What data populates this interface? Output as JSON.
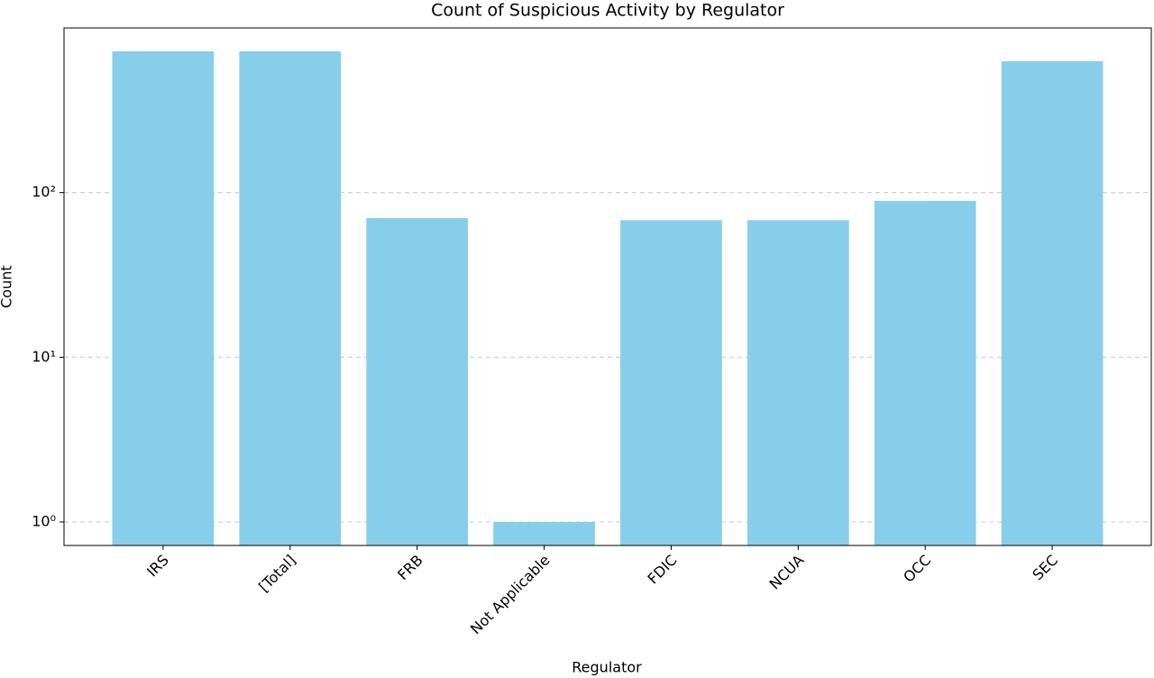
{
  "chart_data": {
    "type": "bar",
    "title": "Count of Suspicious Activity by Regulator",
    "x_label": "Regulator",
    "y_label": "Count",
    "categories": [
      "IRS",
      "[Total]",
      "FRB",
      "Not Applicable",
      "FDIC",
      "NCUA",
      "OCC",
      "SEC"
    ],
    "values": [
      721,
      721,
      70,
      1,
      68,
      68,
      89,
      628
    ],
    "color": "#87ceeb",
    "log_scale": true,
    "ylim": [
      0.72,
      1000
    ],
    "yticks": [
      {
        "value": 1,
        "label": "10⁰"
      },
      {
        "value": 10,
        "label": "10¹"
      },
      {
        "value": 100,
        "label": "10²"
      }
    ],
    "grid": true
  }
}
